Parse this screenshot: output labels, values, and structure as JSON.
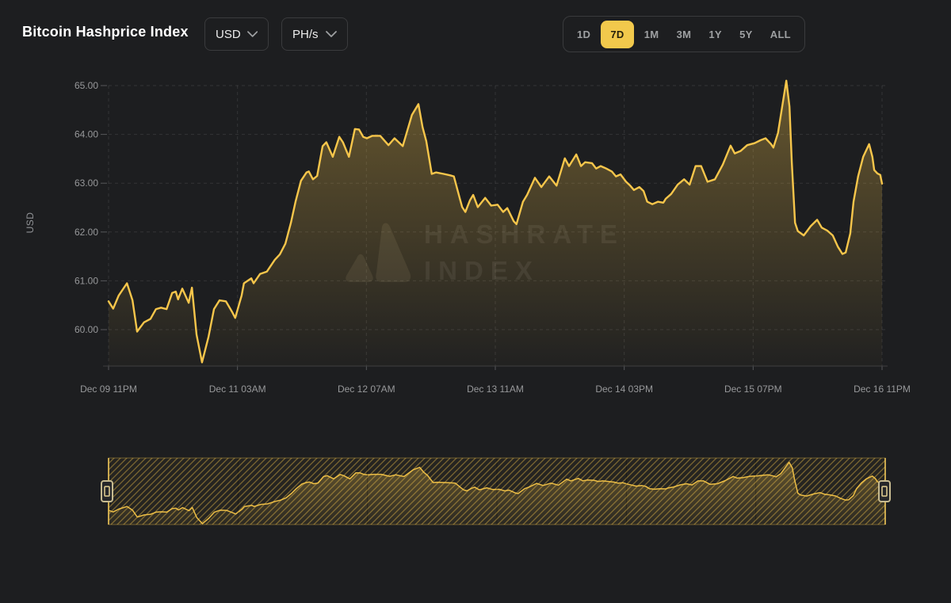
{
  "header": {
    "title": "Bitcoin Hashprice Index",
    "currency_dropdown": {
      "value": "USD",
      "icon": "chevron-down-icon"
    },
    "unit_dropdown": {
      "value": "PH/s",
      "icon": "chevron-down-icon"
    },
    "range_buttons": [
      {
        "label": "1D",
        "active": false
      },
      {
        "label": "7D",
        "active": true
      },
      {
        "label": "1M",
        "active": false
      },
      {
        "label": "3M",
        "active": false
      },
      {
        "label": "1Y",
        "active": false
      },
      {
        "label": "5Y",
        "active": false
      },
      {
        "label": "ALL",
        "active": false
      }
    ]
  },
  "chart": {
    "y_axis_label": "USD",
    "watermark": {
      "line1": "HASHRATE",
      "line2": "INDEX",
      "logo_icon": "hashrate-index-logo-icon"
    }
  },
  "colors": {
    "background": "#1D1E20",
    "accent": "#F2C94C",
    "line": "#F7C64B",
    "grid": "#3A3B3D",
    "text_muted": "#9EA0A2",
    "hatch": "#F6C64A"
  },
  "chart_data": {
    "type": "area",
    "title": "Bitcoin Hashprice Index",
    "ylabel": "USD",
    "x_unit": "hours since Dec 09 11PM",
    "xlim": [
      0,
      168
    ],
    "ylim_main": [
      59.25,
      65.5
    ],
    "grid": "dashed",
    "y_ticks": [
      {
        "value": 60,
        "label": "60.00"
      },
      {
        "value": 61,
        "label": "61.00"
      },
      {
        "value": 62,
        "label": "62.00"
      },
      {
        "value": 63,
        "label": "63.00"
      },
      {
        "value": 64,
        "label": "64.00"
      },
      {
        "value": 65,
        "label": "65.00"
      }
    ],
    "x_ticks": [
      {
        "hour": 0,
        "label": "Dec 09 11PM"
      },
      {
        "hour": 28,
        "label": "Dec 11 03AM"
      },
      {
        "hour": 56,
        "label": "Dec 12 07AM"
      },
      {
        "hour": 84,
        "label": "Dec 13 11AM"
      },
      {
        "hour": 112,
        "label": "Dec 14 03PM"
      },
      {
        "hour": 140,
        "label": "Dec 15 07PM"
      },
      {
        "hour": 168,
        "label": "Dec 16 11PM"
      }
    ],
    "navigator": {
      "selected_range_hours": [
        0,
        168
      ],
      "style": "hatched"
    },
    "points": [
      [
        0,
        60.58
      ],
      [
        1,
        60.43
      ],
      [
        2.2,
        60.7
      ],
      [
        4,
        60.95
      ],
      [
        5.2,
        60.6
      ],
      [
        6.2,
        59.96
      ],
      [
        7.7,
        60.15
      ],
      [
        9.1,
        60.22
      ],
      [
        10.3,
        60.42
      ],
      [
        11.4,
        60.45
      ],
      [
        12.6,
        60.42
      ],
      [
        13.8,
        60.75
      ],
      [
        14.6,
        60.78
      ],
      [
        15.1,
        60.62
      ],
      [
        16,
        60.84
      ],
      [
        17.4,
        60.55
      ],
      [
        18.1,
        60.86
      ],
      [
        19.1,
        59.9
      ],
      [
        20.3,
        59.33
      ],
      [
        21.7,
        59.85
      ],
      [
        22.9,
        60.42
      ],
      [
        24.1,
        60.6
      ],
      [
        25.5,
        60.58
      ],
      [
        26.9,
        60.35
      ],
      [
        27.5,
        60.24
      ],
      [
        28.9,
        60.7
      ],
      [
        29.4,
        60.95
      ],
      [
        31,
        61.05
      ],
      [
        31.5,
        60.95
      ],
      [
        32.9,
        61.14
      ],
      [
        34.4,
        61.19
      ],
      [
        36.1,
        61.43
      ],
      [
        37.2,
        61.54
      ],
      [
        38.4,
        61.76
      ],
      [
        39.6,
        62.19
      ],
      [
        40.6,
        62.62
      ],
      [
        41.8,
        63.05
      ],
      [
        43,
        63.22
      ],
      [
        43.5,
        63.24
      ],
      [
        44.4,
        63.08
      ],
      [
        45.3,
        63.15
      ],
      [
        46.5,
        63.76
      ],
      [
        47.3,
        63.84
      ],
      [
        48.7,
        63.54
      ],
      [
        50.1,
        63.95
      ],
      [
        50.9,
        63.84
      ],
      [
        52.2,
        63.54
      ],
      [
        53.5,
        64.11
      ],
      [
        54.4,
        64.1
      ],
      [
        55.3,
        63.95
      ],
      [
        56.1,
        63.92
      ],
      [
        57.3,
        63.97
      ],
      [
        59,
        63.97
      ],
      [
        60.8,
        63.78
      ],
      [
        62.1,
        63.92
      ],
      [
        63.9,
        63.76
      ],
      [
        65.9,
        64.4
      ],
      [
        67.3,
        64.62
      ],
      [
        68.2,
        64.15
      ],
      [
        69,
        63.86
      ],
      [
        70.2,
        63.19
      ],
      [
        71.1,
        63.22
      ],
      [
        72.8,
        63.19
      ],
      [
        74.2,
        63.16
      ],
      [
        75,
        63.14
      ],
      [
        76.3,
        62.68
      ],
      [
        76.8,
        62.51
      ],
      [
        77.5,
        62.41
      ],
      [
        78.5,
        62.65
      ],
      [
        79.2,
        62.76
      ],
      [
        80.2,
        62.51
      ],
      [
        81.8,
        62.7
      ],
      [
        83.1,
        62.54
      ],
      [
        84.5,
        62.56
      ],
      [
        85.7,
        62.41
      ],
      [
        86.6,
        62.49
      ],
      [
        88,
        62.22
      ],
      [
        88.6,
        62.16
      ],
      [
        90,
        62.62
      ],
      [
        90.9,
        62.76
      ],
      [
        92.6,
        63.11
      ],
      [
        94,
        62.92
      ],
      [
        95.7,
        63.14
      ],
      [
        97.3,
        62.95
      ],
      [
        99.1,
        63.51
      ],
      [
        100,
        63.35
      ],
      [
        101.6,
        63.59
      ],
      [
        102.6,
        63.35
      ],
      [
        103.5,
        63.43
      ],
      [
        105,
        63.41
      ],
      [
        105.9,
        63.3
      ],
      [
        106.9,
        63.35
      ],
      [
        108.1,
        63.3
      ],
      [
        109.3,
        63.24
      ],
      [
        110.2,
        63.14
      ],
      [
        111.2,
        63.18
      ],
      [
        112.4,
        63.03
      ],
      [
        113.3,
        62.95
      ],
      [
        114.1,
        62.86
      ],
      [
        115.3,
        62.92
      ],
      [
        116.2,
        62.84
      ],
      [
        117,
        62.62
      ],
      [
        118.1,
        62.57
      ],
      [
        119.3,
        62.62
      ],
      [
        120.5,
        62.6
      ],
      [
        121,
        62.68
      ],
      [
        122.2,
        62.78
      ],
      [
        123.6,
        62.97
      ],
      [
        125,
        63.08
      ],
      [
        126.2,
        62.97
      ],
      [
        127.5,
        63.35
      ],
      [
        128.7,
        63.35
      ],
      [
        130.1,
        63.03
      ],
      [
        131.7,
        63.08
      ],
      [
        133.4,
        63.38
      ],
      [
        135.1,
        63.77
      ],
      [
        136,
        63.61
      ],
      [
        137.3,
        63.66
      ],
      [
        138.7,
        63.78
      ],
      [
        140.3,
        63.82
      ],
      [
        141.6,
        63.88
      ],
      [
        142.7,
        63.92
      ],
      [
        143.9,
        63.8
      ],
      [
        144.4,
        63.73
      ],
      [
        145.4,
        64.03
      ],
      [
        147.2,
        65.1
      ],
      [
        147.9,
        64.57
      ],
      [
        148.4,
        63.43
      ],
      [
        149.1,
        62.19
      ],
      [
        149.7,
        62.02
      ],
      [
        151,
        61.93
      ],
      [
        152.5,
        62.12
      ],
      [
        153.9,
        62.25
      ],
      [
        154.9,
        62.09
      ],
      [
        156.1,
        62.03
      ],
      [
        157.3,
        61.93
      ],
      [
        158.4,
        61.7
      ],
      [
        159.4,
        61.55
      ],
      [
        160.1,
        61.58
      ],
      [
        161.1,
        61.97
      ],
      [
        161.8,
        62.62
      ],
      [
        162.8,
        63.14
      ],
      [
        163.9,
        63.54
      ],
      [
        165.2,
        63.8
      ],
      [
        165.9,
        63.54
      ],
      [
        166.3,
        63.27
      ],
      [
        167,
        63.2
      ],
      [
        167.6,
        63.17
      ],
      [
        168,
        62.99
      ]
    ]
  }
}
